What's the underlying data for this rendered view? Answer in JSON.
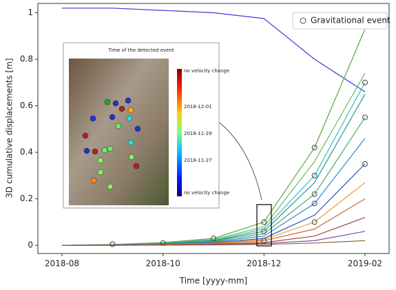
{
  "chart_data": {
    "type": "line",
    "y_label": "3D cumulative displacements [m]",
    "x_label": "Time [yyyy-mm]",
    "x": [
      "2018-08",
      "2018-09",
      "2018-10",
      "2018-11",
      "2018-12",
      "2019-01",
      "2019-02"
    ],
    "xticks": [
      "2018-08",
      "2018-10",
      "2018-12",
      "2019-02"
    ],
    "ylim": [
      -0.035,
      1.04
    ],
    "yticks": [
      0,
      0.2,
      0.4,
      0.6,
      0.8,
      1
    ],
    "series": [
      {
        "color": "#3a3ae0",
        "values": [
          1.02,
          1.02,
          1.01,
          1.0,
          0.975,
          0.8,
          0.66
        ]
      },
      {
        "color": "#55aa44",
        "values": [
          0,
          0.004,
          0.012,
          0.03,
          0.1,
          0.42,
          0.93
        ]
      },
      {
        "color": "#66bb55",
        "values": [
          0,
          0.003,
          0.01,
          0.025,
          0.08,
          0.36,
          0.74
        ]
      },
      {
        "color": "#33bbcc",
        "values": [
          0,
          0.003,
          0.009,
          0.022,
          0.07,
          0.3,
          0.7
        ]
      },
      {
        "color": "#229988",
        "values": [
          0,
          0.002,
          0.008,
          0.02,
          0.06,
          0.27,
          0.65
        ]
      },
      {
        "color": "#44aa66",
        "values": [
          0,
          0.002,
          0.007,
          0.018,
          0.05,
          0.22,
          0.55
        ]
      },
      {
        "color": "#3388cc",
        "values": [
          0,
          0.002,
          0.006,
          0.015,
          0.04,
          0.18,
          0.46
        ]
      },
      {
        "color": "#2255bb",
        "values": [
          0,
          0.001,
          0.005,
          0.012,
          0.03,
          0.13,
          0.35
        ]
      },
      {
        "color": "#ee9933",
        "values": [
          0,
          0.001,
          0.004,
          0.01,
          0.025,
          0.1,
          0.27
        ]
      },
      {
        "color": "#cc6633",
        "values": [
          0,
          0.001,
          0.003,
          0.008,
          0.02,
          0.07,
          0.2
        ]
      },
      {
        "color": "#aa4444",
        "values": [
          0,
          0.001,
          0.002,
          0.005,
          0.012,
          0.04,
          0.12
        ]
      },
      {
        "color": "#7755aa",
        "values": [
          0,
          0,
          0.001,
          0.003,
          0.008,
          0.02,
          0.06
        ]
      },
      {
        "color": "#886633",
        "values": [
          0,
          0,
          0.001,
          0.002,
          0.004,
          0.01,
          0.02
        ]
      }
    ],
    "events": {
      "name": "Gravitational event",
      "color": "#444444",
      "x": [
        "2018-09",
        "2018-10",
        "2018-11",
        "2018-12",
        "2018-12",
        "2018-12",
        "2019-01",
        "2019-01",
        "2019-01",
        "2019-01",
        "2019-01",
        "2019-02",
        "2019-02",
        "2019-02"
      ],
      "values": [
        0.005,
        0.01,
        0.03,
        0.1,
        0.06,
        0.02,
        0.42,
        0.3,
        0.22,
        0.18,
        0.1,
        0.7,
        0.55,
        0.35
      ]
    },
    "legend": "upper right",
    "inset": {
      "title": "Time of the detected event",
      "colorbar_labels": [
        "no velocity change",
        "2018-12-01",
        "2018-11-29",
        "2018-11-27",
        "no velocity change"
      ]
    }
  }
}
